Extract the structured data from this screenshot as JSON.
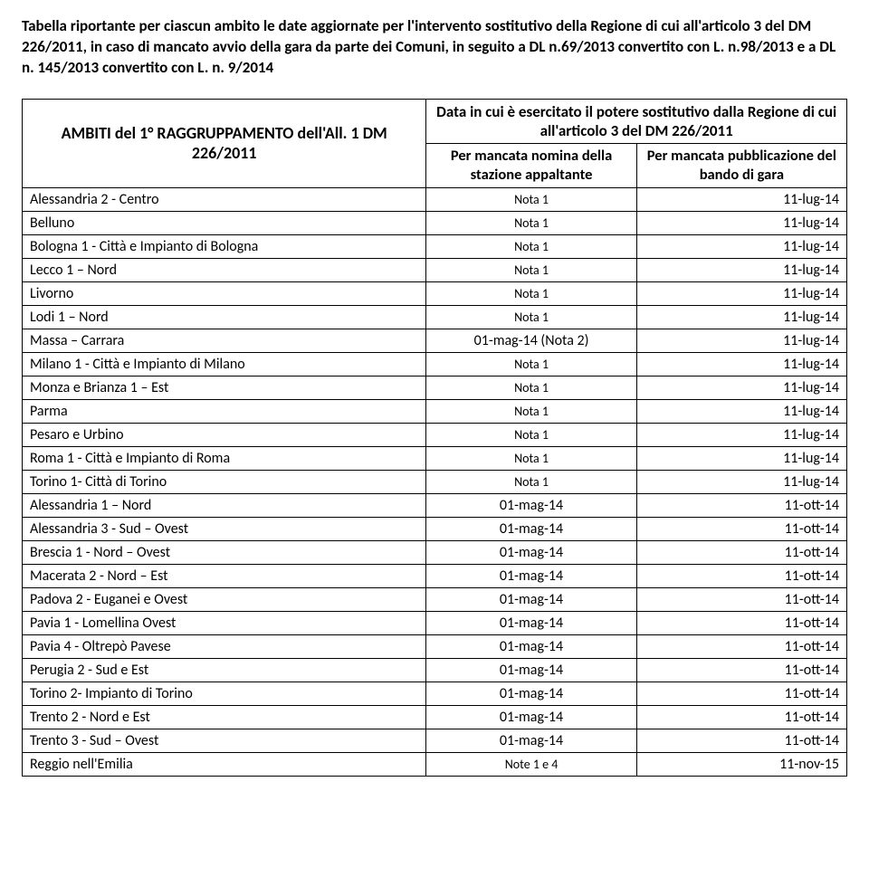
{
  "intro": "Tabella riportante per ciascun ambito le date aggiornate per l'intervento sostitutivo della Regione di cui all'articolo 3 del DM 226/2011, in caso di mancato avvio della gara da parte dei Comuni,  in seguito a DL n.69/2013 convertito con L. n.98/2013 e a DL n. 145/2013 convertito con L. n. 9/2014",
  "headers": {
    "ambiti": "AMBITI del 1° RAGGRUPPAMENTO dell'All. 1 DM 226/2011",
    "dataTop": "Data in cui è esercitato il potere sostitutivo dalla Regione di cui all'articolo 3 del DM 226/2011",
    "sub1": "Per mancata nomina della stazione appaltante",
    "sub2": "Per mancata pubblicazione del bando di gara"
  },
  "rows": [
    {
      "name": "Alessandria 2 - Centro",
      "c2": "Nota 1",
      "c3": "11-lug-14"
    },
    {
      "name": "Belluno",
      "c2": "Nota 1",
      "c3": "11-lug-14"
    },
    {
      "name": "Bologna 1 - Città e Impianto di Bologna",
      "c2": "Nota 1",
      "c3": "11-lug-14"
    },
    {
      "name": "Lecco 1 – Nord",
      "c2": "Nota 1",
      "c3": "11-lug-14"
    },
    {
      "name": "Livorno",
      "c2": "Nota 1",
      "c3": "11-lug-14"
    },
    {
      "name": "Lodi 1 – Nord",
      "c2": "Nota 1",
      "c3": "11-lug-14"
    },
    {
      "name": "Massa – Carrara",
      "c2": "01-mag-14 (Nota 2)",
      "c3": "11-lug-14",
      "big": true
    },
    {
      "name": "Milano 1 - Città e Impianto di Milano",
      "c2": "Nota 1",
      "c3": "11-lug-14"
    },
    {
      "name": "Monza e Brianza 1 – Est",
      "c2": "Nota 1",
      "c3": "11-lug-14"
    },
    {
      "name": "Parma",
      "c2": "Nota 1",
      "c3": "11-lug-14"
    },
    {
      "name": "Pesaro e Urbino",
      "c2": "Nota 1",
      "c3": "11-lug-14"
    },
    {
      "name": "Roma 1 - Città e Impianto di Roma",
      "c2": "Nota 1",
      "c3": "11-lug-14"
    },
    {
      "name": "Torino 1- Città di Torino",
      "c2": "Nota 1",
      "c3": "11-lug-14"
    },
    {
      "name": "Alessandria 1 – Nord",
      "c2": "01-mag-14",
      "c3": "11-ott-14",
      "big": true
    },
    {
      "name": "Alessandria 3 - Sud – Ovest",
      "c2": "01-mag-14",
      "c3": "11-ott-14",
      "big": true
    },
    {
      "name": "Brescia 1 - Nord – Ovest",
      "c2": "01-mag-14",
      "c3": "11-ott-14",
      "big": true
    },
    {
      "name": "Macerata 2 - Nord – Est",
      "c2": "01-mag-14",
      "c3": "11-ott-14",
      "big": true
    },
    {
      "name": "Padova 2 - Euganei e Ovest",
      "c2": "01-mag-14",
      "c3": "11-ott-14",
      "big": true
    },
    {
      "name": "Pavia 1 - Lomellina Ovest",
      "c2": "01-mag-14",
      "c3": "11-ott-14",
      "big": true
    },
    {
      "name": "Pavia 4 - Oltrepò Pavese",
      "c2": "01-mag-14",
      "c3": "11-ott-14",
      "big": true
    },
    {
      "name": "Perugia 2 - Sud e Est",
      "c2": "01-mag-14",
      "c3": "11-ott-14",
      "big": true
    },
    {
      "name": "Torino 2- Impianto di Torino",
      "c2": "01-mag-14",
      "c3": "11-ott-14",
      "big": true
    },
    {
      "name": "Trento 2 - Nord e Est",
      "c2": "01-mag-14",
      "c3": "11-ott-14",
      "big": true
    },
    {
      "name": "Trento 3 - Sud – Ovest",
      "c2": "01-mag-14",
      "c3": "11-ott-14",
      "big": true
    },
    {
      "name": "Reggio nell'Emilia",
      "c2": "Note 1 e 4",
      "c3": "11-nov-15"
    }
  ]
}
